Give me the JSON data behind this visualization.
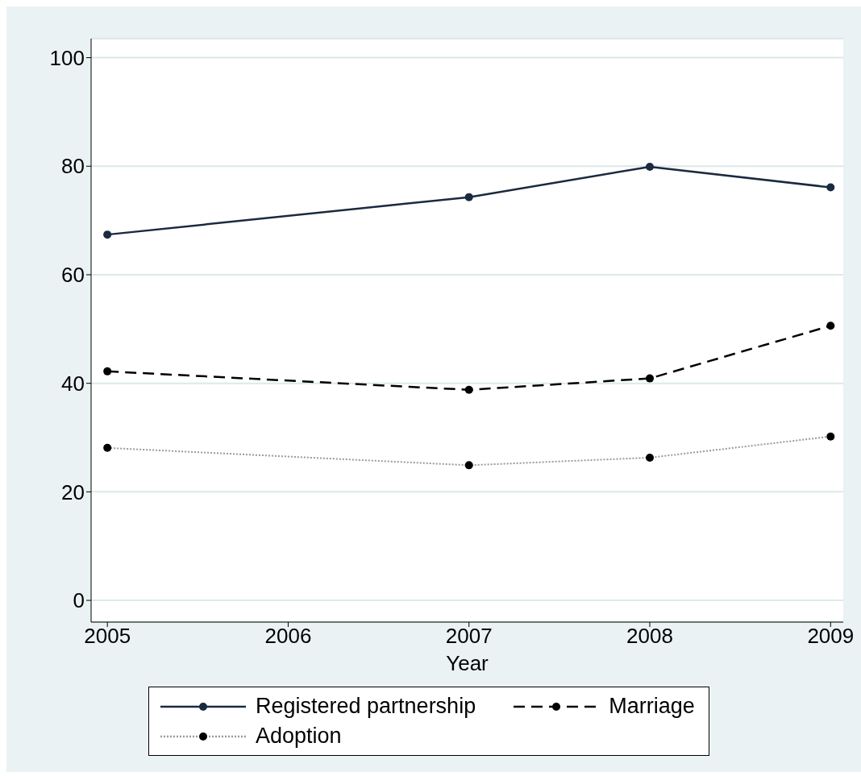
{
  "chart_data": {
    "type": "line",
    "xlabel": "Year",
    "x": [
      2005,
      2007,
      2008,
      2009
    ],
    "xlim": [
      2004.91,
      2009.07
    ],
    "xticks": [
      2005,
      2006,
      2007,
      2008,
      2009
    ],
    "ylim": [
      -4,
      103.5
    ],
    "yticks": [
      0,
      20,
      40,
      60,
      80,
      100
    ],
    "grid": "y",
    "legend": "bottom",
    "marker": "circle",
    "series": [
      {
        "name": "Registered partnership",
        "color": "#1a2a3f",
        "line_style": "solid",
        "values": [
          67.4,
          74.3,
          79.9,
          76.1
        ]
      },
      {
        "name": "Marriage",
        "color": "#000000",
        "line_style": "dashed",
        "values": [
          42.2,
          38.8,
          40.9,
          50.6
        ]
      },
      {
        "name": "Adoption",
        "color": "#9a9a9a",
        "line_style": "dotted",
        "values": [
          28.1,
          24.9,
          26.3,
          30.2
        ]
      }
    ]
  }
}
